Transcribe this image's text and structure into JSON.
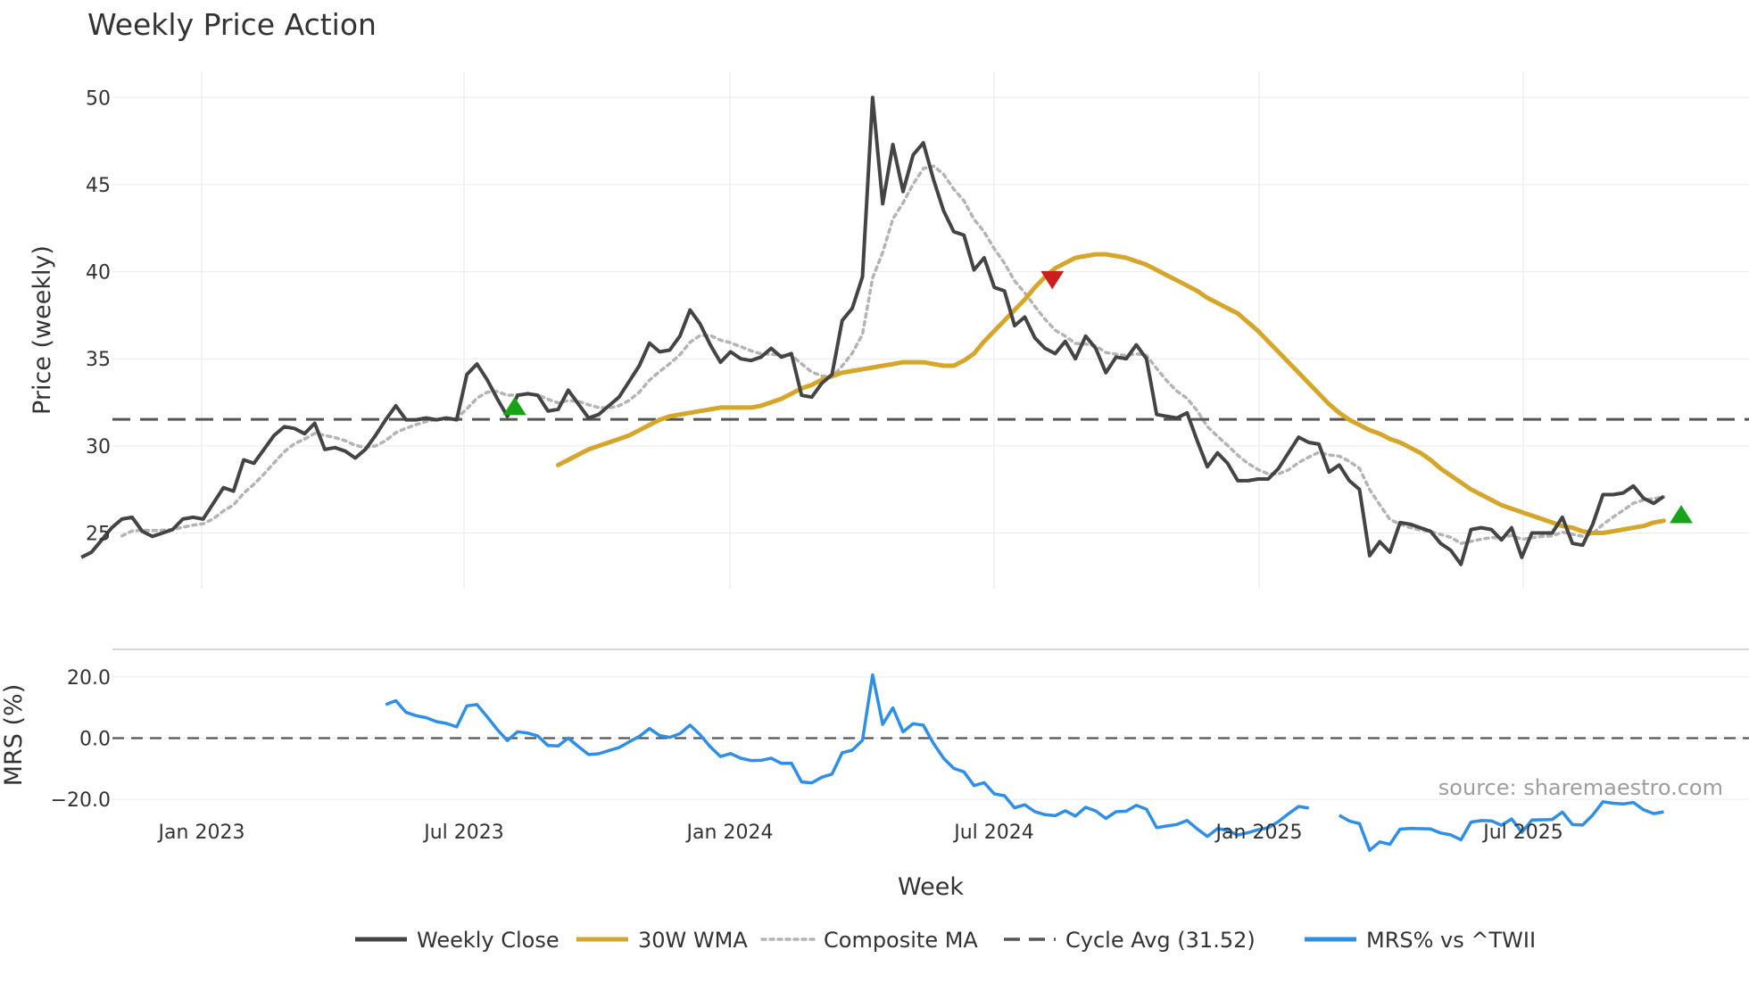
{
  "chart_data": {
    "type": "line",
    "title": "Weekly Price Action",
    "xlabel": "Week",
    "watermark": "source: sharemaestro.com",
    "x_tick_labels": [
      "Jan 2023",
      "Jul 2023",
      "Jan 2024",
      "Jul 2024",
      "Jan 2025",
      "Jul 2025"
    ],
    "x_tick_dates": [
      "2023-01",
      "2023-07",
      "2024-01",
      "2024-07",
      "2025-01",
      "2025-07"
    ],
    "x_range": [
      "2022-10",
      "2025-12"
    ],
    "colors": {
      "close": "#444444",
      "wma": "#d6a62a",
      "composite": "#b4b4b4",
      "cycle": "#555555",
      "mrs": "#2f8fe6",
      "buy": "#16a31a",
      "sell": "#cc1e1e",
      "grid": "#ebebeb",
      "separator": "#c8c8c8"
    },
    "price_panel": {
      "ylabel": "Price (weekly)",
      "ylim": [
        21.8,
        51.5
      ],
      "yticks": [
        25,
        30,
        35,
        40,
        45,
        50
      ],
      "ytick_labels": [
        "25",
        "30",
        "35",
        "40",
        "45",
        "50"
      ],
      "cycle_avg": 31.52,
      "weekly_close": [
        23.6,
        23.9,
        24.6,
        25.3,
        25.8,
        25.9,
        25.1,
        24.8,
        25.0,
        25.2,
        25.8,
        25.9,
        25.8,
        26.7,
        27.6,
        27.4,
        29.2,
        29.0,
        29.8,
        30.6,
        31.1,
        31.0,
        30.7,
        31.3,
        29.8,
        29.9,
        29.7,
        29.3,
        29.8,
        30.6,
        31.5,
        32.3,
        31.5,
        31.5,
        31.6,
        31.5,
        31.6,
        31.5,
        34.1,
        34.7,
        33.8,
        32.7,
        31.7,
        32.9,
        33.0,
        32.9,
        32.0,
        32.1,
        33.2,
        32.4,
        31.6,
        31.8,
        32.3,
        32.8,
        33.7,
        34.6,
        35.9,
        35.4,
        35.5,
        36.3,
        37.8,
        37.0,
        35.8,
        34.8,
        35.4,
        35.0,
        34.9,
        35.1,
        35.6,
        35.1,
        35.3,
        32.9,
        32.8,
        33.6,
        34.1,
        37.2,
        37.9,
        39.7,
        50.0,
        43.9,
        47.3,
        44.6,
        46.7,
        47.4,
        45.3,
        43.5,
        42.3,
        42.1,
        40.1,
        40.8,
        39.1,
        38.9,
        36.9,
        37.4,
        36.2,
        35.6,
        35.3,
        36.0,
        35.0,
        36.3,
        35.6,
        34.2,
        35.1,
        35.0,
        35.8,
        35.0,
        31.8,
        31.7,
        31.6,
        31.9,
        30.3,
        28.8,
        29.6,
        29.0,
        28.0,
        28.0,
        28.1,
        28.1,
        28.7,
        29.6,
        30.5,
        30.2,
        30.1,
        28.5,
        28.9,
        28.0,
        27.5,
        23.7,
        24.5,
        23.9,
        25.6,
        25.5,
        25.3,
        25.1,
        24.4,
        24.0,
        23.2,
        25.2,
        25.3,
        25.2,
        24.6,
        25.3,
        23.6,
        25.0,
        25.0,
        25.0,
        25.9,
        24.4,
        24.3,
        25.5,
        27.2,
        27.2,
        27.3,
        27.7,
        27.0,
        26.7,
        27.1
      ],
      "wma_30w": [
        28.9,
        29.2,
        29.5,
        29.8,
        30.0,
        30.2,
        30.4,
        30.6,
        30.9,
        31.2,
        31.5,
        31.7,
        31.8,
        31.9,
        32.0,
        32.1,
        32.2,
        32.2,
        32.2,
        32.2,
        32.3,
        32.5,
        32.7,
        33.0,
        33.3,
        33.5,
        33.8,
        34.0,
        34.2,
        34.3,
        34.4,
        34.5,
        34.6,
        34.7,
        34.8,
        34.8,
        34.8,
        34.7,
        34.6,
        34.6,
        34.9,
        35.3,
        36.0,
        36.6,
        37.2,
        37.8,
        38.4,
        39.1,
        39.7,
        40.2,
        40.5,
        40.8,
        40.9,
        41.0,
        41.0,
        40.9,
        40.8,
        40.6,
        40.4,
        40.1,
        39.8,
        39.5,
        39.2,
        38.9,
        38.5,
        38.2,
        37.9,
        37.6,
        37.1,
        36.6,
        36.0,
        35.4,
        34.8,
        34.2,
        33.6,
        33.0,
        32.4,
        31.9,
        31.5,
        31.2,
        30.9,
        30.7,
        30.4,
        30.2,
        29.9,
        29.6,
        29.2,
        28.7,
        28.3,
        27.9,
        27.5,
        27.2,
        26.9,
        26.6,
        26.4,
        26.2,
        26.0,
        25.8,
        25.6,
        25.4,
        25.3,
        25.1,
        25.0,
        25.0,
        25.1,
        25.2,
        25.3,
        25.4,
        25.6,
        25.7
      ]
    },
    "mrs_panel": {
      "ylabel": "MRS (%)",
      "ylim": [
        -25.5,
        29.0
      ],
      "yticks": [
        -20.0,
        0.0,
        20.0
      ],
      "ytick_labels": [
        "−20.0",
        "0.0",
        "20.0"
      ],
      "zero_line": 0.0
    },
    "signals": [
      {
        "type": "buy",
        "date": "2023-08-05",
        "value": 32.2
      },
      {
        "type": "sell",
        "date": "2024-08-10",
        "value": 39.6
      },
      {
        "type": "buy",
        "date": "2025-10-18",
        "value": 26.0
      }
    ],
    "legend": [
      {
        "label": "Weekly Close",
        "style": "solid",
        "color_key": "close"
      },
      {
        "label": "30W WMA",
        "style": "solid",
        "color_key": "wma"
      },
      {
        "label": "Composite MA",
        "style": "dotted",
        "color_key": "composite"
      },
      {
        "label": "Cycle Avg (31.52)",
        "style": "dashed",
        "color_key": "cycle"
      },
      {
        "label": "MRS% vs ^TWII",
        "style": "solid",
        "color_key": "mrs"
      }
    ]
  }
}
